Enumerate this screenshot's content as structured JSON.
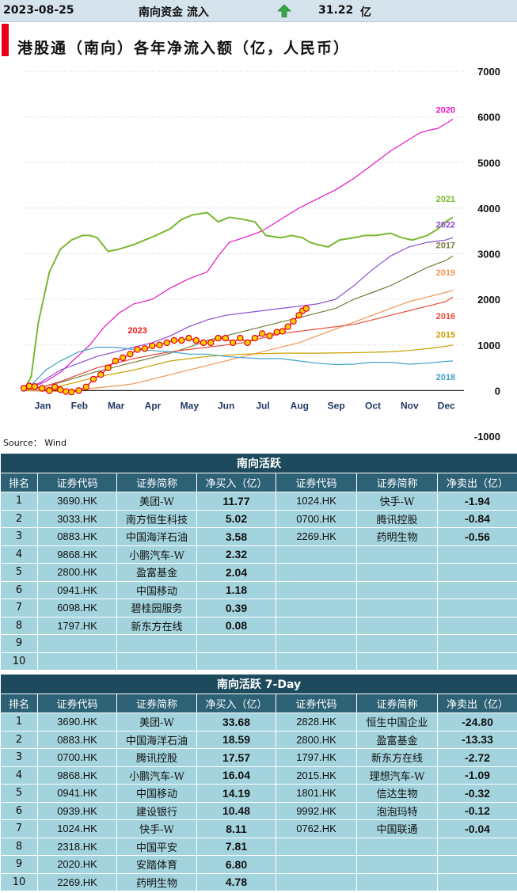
{
  "header": {
    "date": "2023-08-25",
    "label": "南向资金 流入",
    "value": "31.22",
    "unit": "亿"
  },
  "chart_data": {
    "type": "line",
    "title": "港股通（南向）各年净流入额（亿，人民币）",
    "source": "Source： Wind",
    "months": [
      "Jan",
      "Feb",
      "Mar",
      "Apr",
      "May",
      "Jun",
      "Jul",
      "Aug",
      "Sep",
      "Oct",
      "Nov",
      "Dec"
    ],
    "yticks": [
      7000,
      6000,
      5000,
      4000,
      3000,
      2000,
      1000,
      0,
      -1000
    ],
    "ylim": [
      -1000,
      7000
    ],
    "series": [
      {
        "name": "2020",
        "color": "#e815c8",
        "x": [
          0,
          0.3,
          0.6,
          1,
          1.4,
          1.8,
          2.2,
          2.6,
          3,
          3.5,
          4,
          4.5,
          5,
          5.3,
          5.6,
          6,
          6.5,
          7,
          7.5,
          8,
          8.5,
          9,
          9.5,
          10,
          10.5,
          10.8,
          11,
          11.3,
          11.5,
          11.7
        ],
        "y": [
          0,
          100,
          200,
          400,
          700,
          1000,
          1400,
          1700,
          1900,
          2000,
          2250,
          2450,
          2600,
          2950,
          3250,
          3350,
          3500,
          3750,
          4000,
          4200,
          4400,
          4650,
          4950,
          5250,
          5500,
          5650,
          5700,
          5750,
          5850,
          5950
        ]
      },
      {
        "name": "2021",
        "color": "#7ab733",
        "x": [
          0,
          0.2,
          0.4,
          0.7,
          1,
          1.3,
          1.6,
          1.8,
          2,
          2.3,
          2.6,
          3,
          3.3,
          3.6,
          4,
          4.3,
          4.6,
          5,
          5.3,
          5.6,
          6,
          6.3,
          6.6,
          7,
          7.3,
          7.6,
          7.8,
          8,
          8.3,
          8.6,
          9,
          9.3,
          9.6,
          10,
          10.3,
          10.6,
          11,
          11.3,
          11.5,
          11.7
        ],
        "y": [
          0,
          300,
          1500,
          2600,
          3100,
          3300,
          3400,
          3400,
          3350,
          3050,
          3100,
          3200,
          3300,
          3400,
          3550,
          3750,
          3850,
          3900,
          3700,
          3800,
          3750,
          3700,
          3400,
          3350,
          3400,
          3350,
          3250,
          3200,
          3150,
          3300,
          3350,
          3400,
          3400,
          3450,
          3350,
          3300,
          3400,
          3550,
          3700,
          3800
        ]
      },
      {
        "name": "2022",
        "color": "#8a4ed4",
        "x": [
          0,
          0.5,
          1,
          1.5,
          2,
          2.5,
          3,
          3.5,
          4,
          4.5,
          5,
          5.5,
          6,
          6.5,
          7,
          7.5,
          8,
          8.5,
          9,
          9.5,
          10,
          10.5,
          11,
          11.5,
          11.7
        ],
        "y": [
          0,
          200,
          450,
          600,
          750,
          850,
          950,
          1050,
          1200,
          1400,
          1550,
          1650,
          1700,
          1750,
          1800,
          1850,
          1900,
          2000,
          2300,
          2650,
          2950,
          3150,
          3250,
          3300,
          3350
        ]
      },
      {
        "name": "2017",
        "color": "#7a7a3c",
        "x": [
          0,
          0.5,
          1,
          1.5,
          2,
          2.5,
          3,
          3.5,
          4,
          4.5,
          5,
          5.5,
          6,
          6.5,
          7,
          7.5,
          8,
          8.5,
          9,
          9.5,
          10,
          10.5,
          11,
          11.5,
          11.7
        ],
        "y": [
          0,
          80,
          180,
          300,
          420,
          520,
          620,
          720,
          820,
          950,
          1100,
          1200,
          1300,
          1400,
          1500,
          1600,
          1700,
          1800,
          2000,
          2150,
          2300,
          2500,
          2700,
          2850,
          2950
        ]
      },
      {
        "name": "2019",
        "color": "#f29554",
        "x": [
          0,
          0.5,
          1,
          1.5,
          2,
          2.5,
          3,
          3.5,
          4,
          4.5,
          5,
          5.5,
          6,
          6.5,
          7,
          7.5,
          8,
          8.5,
          9,
          9.5,
          10,
          10.5,
          11,
          11.5,
          11.7
        ],
        "y": [
          0,
          -10,
          -20,
          20,
          60,
          100,
          150,
          250,
          350,
          450,
          550,
          650,
          750,
          850,
          950,
          1050,
          1200,
          1350,
          1500,
          1650,
          1800,
          1950,
          2050,
          2150,
          2200
        ]
      },
      {
        "name": "2016",
        "color": "#e84a3c",
        "x": [
          0,
          0.5,
          1,
          1.5,
          2,
          2.5,
          3,
          3.5,
          4,
          4.5,
          5,
          5.5,
          6,
          6.5,
          7,
          7.5,
          8,
          8.5,
          9,
          9.5,
          10,
          10.5,
          11,
          11.5,
          11.7
        ],
        "y": [
          0,
          80,
          200,
          350,
          500,
          600,
          700,
          780,
          850,
          900,
          950,
          1000,
          1050,
          1150,
          1250,
          1300,
          1350,
          1400,
          1450,
          1550,
          1650,
          1750,
          1850,
          1950,
          2050
        ]
      },
      {
        "name": "2015",
        "color": "#c9a000",
        "x": [
          0,
          0.5,
          1,
          1.5,
          2,
          3,
          4,
          5,
          6,
          7,
          8,
          9,
          10,
          10.5,
          11,
          11.5,
          11.7
        ],
        "y": [
          0,
          50,
          100,
          200,
          300,
          450,
          650,
          750,
          800,
          820,
          820,
          830,
          850,
          880,
          920,
          970,
          1000
        ]
      },
      {
        "name": "2018",
        "color": "#3fa3c8",
        "x": [
          0,
          0.3,
          0.6,
          1,
          1.5,
          2,
          2.5,
          3,
          3.5,
          4,
          4.5,
          5,
          5.5,
          6,
          6.5,
          7,
          7.5,
          8,
          8.5,
          9,
          9.5,
          10,
          10.5,
          11,
          11.5,
          11.7
        ],
        "y": [
          0,
          200,
          450,
          650,
          850,
          950,
          950,
          900,
          880,
          850,
          800,
          800,
          750,
          720,
          700,
          700,
          650,
          600,
          570,
          580,
          620,
          620,
          580,
          600,
          640,
          650
        ]
      },
      {
        "name": "2023",
        "color": "#ef1c1c",
        "marker": true,
        "x": [
          0,
          0.15,
          0.3,
          0.5,
          0.7,
          0.85,
          1,
          1.15,
          1.3,
          1.5,
          1.7,
          1.9,
          2.1,
          2.3,
          2.5,
          2.7,
          2.9,
          3.1,
          3.3,
          3.5,
          3.7,
          3.9,
          4.1,
          4.3,
          4.5,
          4.7,
          4.9,
          5.1,
          5.3,
          5.5,
          5.7,
          5.9,
          6.1,
          6.3,
          6.5,
          6.7,
          6.9,
          7.05,
          7.2,
          7.35,
          7.5,
          7.6,
          7.7
        ],
        "y": [
          50,
          100,
          90,
          50,
          0,
          80,
          20,
          -20,
          -30,
          0,
          80,
          250,
          350,
          500,
          650,
          720,
          800,
          900,
          920,
          980,
          1000,
          1050,
          1100,
          1100,
          1150,
          1100,
          1050,
          1050,
          1150,
          1150,
          1050,
          1150,
          1050,
          1150,
          1250,
          1200,
          1280,
          1300,
          1400,
          1520,
          1650,
          1750,
          1800
        ]
      }
    ]
  },
  "tables": [
    {
      "title": "南向活跃",
      "headers": [
        "排名",
        "证券代码",
        "证券简称",
        "净买入（亿）",
        "证券代码",
        "证券简称",
        "净卖出（亿）"
      ],
      "rows": [
        [
          "1",
          "3690.HK",
          "美团-W",
          "11.77",
          "1024.HK",
          "快手-W",
          "-1.94"
        ],
        [
          "2",
          "3033.HK",
          "南方恒生科技",
          "5.02",
          "0700.HK",
          "腾讯控股",
          "-0.84"
        ],
        [
          "3",
          "0883.HK",
          "中国海洋石油",
          "3.58",
          "2269.HK",
          "药明生物",
          "-0.56"
        ],
        [
          "4",
          "9868.HK",
          "小鹏汽车-W",
          "2.32",
          "",
          "",
          ""
        ],
        [
          "5",
          "2800.HK",
          "盈富基金",
          "2.04",
          "",
          "",
          ""
        ],
        [
          "6",
          "0941.HK",
          "中国移动",
          "1.18",
          "",
          "",
          ""
        ],
        [
          "7",
          "6098.HK",
          "碧桂园服务",
          "0.39",
          "",
          "",
          ""
        ],
        [
          "8",
          "1797.HK",
          "新东方在线",
          "0.08",
          "",
          "",
          ""
        ],
        [
          "9",
          "",
          "",
          "",
          "",
          "",
          ""
        ],
        [
          "10",
          "",
          "",
          "",
          "",
          "",
          ""
        ]
      ]
    },
    {
      "title": "南向活跃 7-Day",
      "headers": [
        "排名",
        "证券代码",
        "证券简称",
        "净买入（亿）",
        "证券代码",
        "证券简称",
        "净卖出（亿）"
      ],
      "rows": [
        [
          "1",
          "3690.HK",
          "美团-W",
          "33.68",
          "2828.HK",
          "恒生中国企业",
          "-24.80"
        ],
        [
          "2",
          "0883.HK",
          "中国海洋石油",
          "18.59",
          "2800.HK",
          "盈富基金",
          "-13.33"
        ],
        [
          "3",
          "0700.HK",
          "腾讯控股",
          "17.57",
          "1797.HK",
          "新东方在线",
          "-2.72"
        ],
        [
          "4",
          "9868.HK",
          "小鹏汽车-W",
          "16.04",
          "2015.HK",
          "理想汽车-W",
          "-1.09"
        ],
        [
          "5",
          "0941.HK",
          "中国移动",
          "14.19",
          "1801.HK",
          "信达生物",
          "-0.32"
        ],
        [
          "6",
          "0939.HK",
          "建设银行",
          "10.48",
          "9992.HK",
          "泡泡玛特",
          "-0.12"
        ],
        [
          "7",
          "1024.HK",
          "快手-W",
          "8.11",
          "0762.HK",
          "中国联通",
          "-0.04"
        ],
        [
          "8",
          "2318.HK",
          "中国平安",
          "7.81",
          "",
          "",
          ""
        ],
        [
          "9",
          "2020.HK",
          "安踏体育",
          "6.80",
          "",
          "",
          ""
        ],
        [
          "10",
          "2269.HK",
          "药明生物",
          "4.78",
          "",
          "",
          ""
        ]
      ]
    }
  ]
}
